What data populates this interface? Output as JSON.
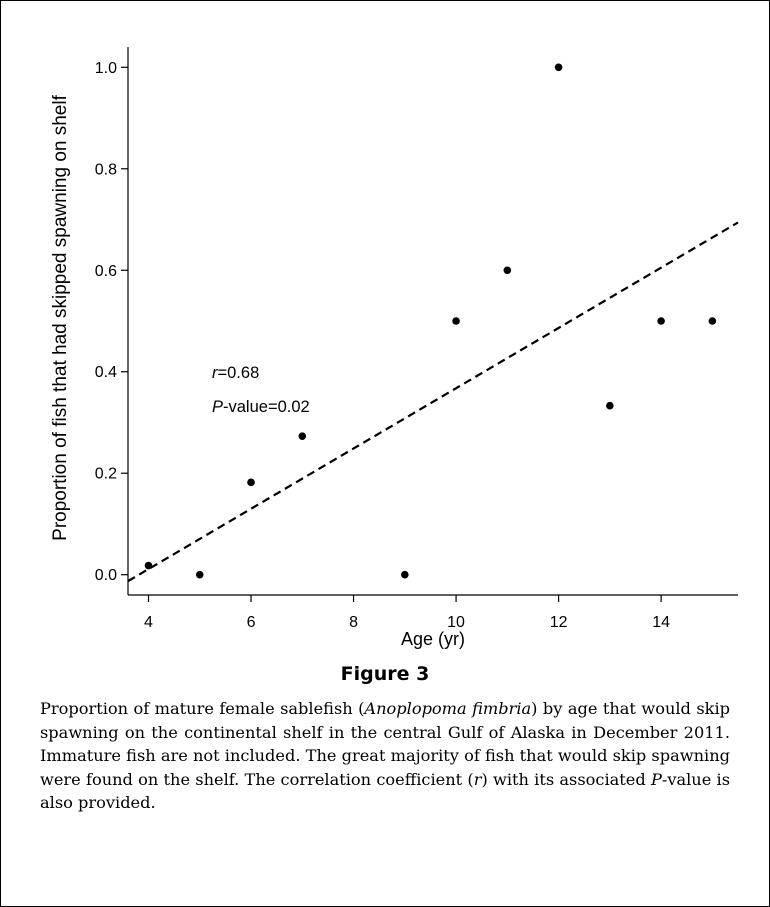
{
  "chart_data": {
    "type": "scatter",
    "x": [
      4,
      5,
      6,
      7,
      9,
      10,
      11,
      12,
      13,
      14,
      15
    ],
    "y": [
      0.018,
      0.0,
      0.182,
      0.273,
      0.0,
      0.5,
      0.6,
      1.0,
      0.333,
      0.5,
      0.5
    ],
    "trendline": {
      "style": "dashed",
      "slope": 0.0594,
      "intercept": -0.2265
    },
    "xlabel": "Age (yr)",
    "ylabel": "Proportion of fish that had skipped spawning on shelf",
    "xlim": [
      3.6,
      15.5
    ],
    "ylim": [
      -0.04,
      1.04
    ],
    "xticks": [
      "4",
      "6",
      "8",
      "10",
      "12",
      "14"
    ],
    "yticks": [
      "0.0",
      "0.2",
      "0.4",
      "0.6",
      "0.8",
      "1.0"
    ],
    "xtick_values": [
      4,
      6,
      8,
      10,
      12,
      14
    ],
    "ytick_values": [
      0,
      0.2,
      0.4,
      0.6,
      0.8,
      1.0
    ],
    "annotations": {
      "r_symbol": "r",
      "r_value": "=0.68",
      "p_symbol": "P",
      "p_value": "-value=0.02"
    },
    "grid": false
  },
  "figure": {
    "label": "Figure 3",
    "caption": {
      "part1": "Proportion of mature female sablefish (",
      "species": "Anoplopoma fimbria",
      "part2": ") by age that would skip spawning on the continental shelf in the central Gulf of Alaska in December 2011. Immature fish are not included. The great majority of fish that would skip spawning were found on the shelf. The correlation coefficient (",
      "r": "r",
      "part3": ") with its associated ",
      "p": "P",
      "part4": "-value is also provided."
    }
  },
  "colors": {
    "ink": "#000000",
    "background": "#ffffff"
  }
}
